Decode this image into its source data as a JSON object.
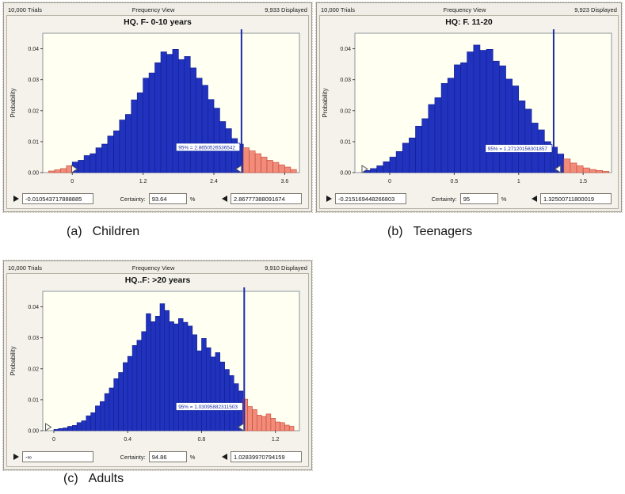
{
  "colors": {
    "bar_blue": "#2133be",
    "bar_blue_stroke": "#101e8c",
    "bar_red": "#f28c7a",
    "bar_red_stroke": "#c44433",
    "line": "#1b2da8",
    "plot_bg": "#fffff2",
    "plot_border": "#8e949c",
    "annotation_text": "#1b2da8"
  },
  "captions": [
    {
      "index": "(a)",
      "text": "Children"
    },
    {
      "index": "(b)",
      "text": "Teenagers"
    },
    {
      "index": "(c)",
      "text": "Adults"
    }
  ],
  "charts": [
    {
      "header": {
        "trials": "10,000 Trials",
        "view": "Frequency View",
        "displayed": "9,933 Displayed"
      },
      "title": "HQ. F- 0-10 years",
      "ylabel": "Probability",
      "annotation": "95% = 2.8650526536542",
      "controls": {
        "min_value": "-0.010543717888885",
        "certainty_label": "Certainty:",
        "certainty_value": "93.64",
        "percent_label": "%",
        "max_value": "2.86777388091674"
      },
      "chart_data": {
        "type": "bar",
        "title": "HQ. F- 0-10 years",
        "xlabel": "",
        "ylabel": "Probability",
        "xlim": [
          -0.5,
          3.85
        ],
        "ylim": [
          0,
          0.045
        ],
        "xtick_values": [
          0,
          1.2,
          2.4,
          3.6
        ],
        "xtick_labels": [
          "0",
          "1.2",
          "2.4",
          "3.6"
        ],
        "ytick_values": [
          0,
          0.01,
          0.02,
          0.03,
          0.04
        ],
        "ytick_labels": [
          "0.00",
          "0.01",
          "0.02",
          "0.03",
          "0.04"
        ],
        "bin_start": -0.4,
        "bin_width": 0.1,
        "bins_p": [
          0.0005,
          0.0009,
          0.0013,
          0.0022,
          0.0034,
          0.004,
          0.0055,
          0.0061,
          0.008,
          0.0092,
          0.0118,
          0.0135,
          0.017,
          0.0188,
          0.0235,
          0.0258,
          0.0305,
          0.0322,
          0.0355,
          0.039,
          0.0382,
          0.0398,
          0.0365,
          0.0375,
          0.0338,
          0.0305,
          0.0282,
          0.0236,
          0.0208,
          0.0165,
          0.0142,
          0.011,
          0.0092,
          0.008,
          0.007,
          0.0061,
          0.005,
          0.004,
          0.0033,
          0.0025,
          0.0018,
          0.001
        ],
        "left_grabber_x": -0.0105,
        "right_grabber_x": 2.8678,
        "line_x": 2.8678,
        "annotation_y": 0.0082,
        "grid": false,
        "legend": "none"
      }
    },
    {
      "header": {
        "trials": "10,000 Trials",
        "view": "Frequency View",
        "displayed": "9,923 Displayed"
      },
      "title": "HQ: F. 11-20",
      "ylabel": "Probability",
      "annotation": "95% = 1.27120156301857",
      "controls": {
        "min_value": "-0.215169448266803",
        "certainty_label": "Certainty:",
        "certainty_value": "95",
        "percent_label": "%",
        "max_value": "1.32500711800019"
      },
      "chart_data": {
        "type": "bar",
        "title": "HQ: F. 11-20",
        "xlabel": "",
        "ylabel": "Probability",
        "xlim": [
          -0.27,
          1.72
        ],
        "ylim": [
          0,
          0.045
        ],
        "xtick_values": [
          0,
          0.5,
          1,
          1.5
        ],
        "xtick_labels": [
          "0",
          "0.5",
          "1",
          "1.5"
        ],
        "ytick_values": [
          0,
          0.01,
          0.02,
          0.03,
          0.04
        ],
        "ytick_labels": [
          "0.00",
          "0.01",
          "0.02",
          "0.03",
          "0.04"
        ],
        "bin_start": -0.2,
        "bin_width": 0.05,
        "bins_p": [
          0.0007,
          0.0013,
          0.0022,
          0.0035,
          0.005,
          0.0068,
          0.0095,
          0.0112,
          0.015,
          0.0174,
          0.022,
          0.0242,
          0.0288,
          0.0305,
          0.0348,
          0.0355,
          0.039,
          0.0412,
          0.0395,
          0.0398,
          0.036,
          0.0345,
          0.0302,
          0.028,
          0.0232,
          0.0205,
          0.016,
          0.0138,
          0.01,
          0.0082,
          0.006,
          0.0044,
          0.0031,
          0.0022,
          0.0015,
          0.001,
          0.0007,
          0.0004
        ],
        "left_grabber_x": -0.215,
        "right_grabber_x": 1.325,
        "line_x": 1.2712,
        "annotation_y": 0.0078,
        "grid": false,
        "legend": "none"
      }
    },
    {
      "header": {
        "trials": "10,000 Trials",
        "view": "Frequency View",
        "displayed": "9,910 Displayed"
      },
      "title": "HQ..F: >20 years",
      "ylabel": "Probability",
      "annotation": "95% = 1.03095882311503",
      "controls": {
        "min_value": "-∞",
        "certainty_label": "Certainty:",
        "certainty_value": "94.86",
        "percent_label": "%",
        "max_value": "1.02839970794159"
      },
      "chart_data": {
        "type": "bar",
        "title": "HQ..F: >20 years",
        "xlabel": "",
        "ylabel": "Probability",
        "xlim": [
          -0.06,
          1.33
        ],
        "ylim": [
          0,
          0.045
        ],
        "xtick_values": [
          0,
          0.4,
          0.8,
          1.2
        ],
        "xtick_labels": [
          "0",
          "0.4",
          "0.8",
          "1.2"
        ],
        "ytick_values": [
          0,
          0.01,
          0.02,
          0.03,
          0.04
        ],
        "ytick_labels": [
          "0.00",
          "0.01",
          "0.02",
          "0.03",
          "0.04"
        ],
        "bin_start": 0,
        "bin_width": 0.025,
        "bins_p": [
          0.0004,
          0.0007,
          0.0009,
          0.0014,
          0.0017,
          0.0026,
          0.0032,
          0.0048,
          0.0058,
          0.008,
          0.0094,
          0.012,
          0.0138,
          0.0168,
          0.0188,
          0.022,
          0.024,
          0.0275,
          0.0292,
          0.032,
          0.0378,
          0.0352,
          0.037,
          0.041,
          0.0388,
          0.0352,
          0.0345,
          0.0362,
          0.035,
          0.0338,
          0.031,
          0.0258,
          0.0298,
          0.0268,
          0.0238,
          0.0252,
          0.0222,
          0.0198,
          0.0178,
          0.0152,
          0.0128,
          0.0102,
          0.0078,
          0.0068,
          0.005,
          0.0046,
          0.0054,
          0.004,
          0.0028,
          0.0026,
          0.0018,
          0.0014
        ],
        "left_grabber_x": -0.045,
        "right_grabber_x": 1.0284,
        "line_x": 1.031,
        "annotation_y": 0.0078,
        "grid": false,
        "legend": "none"
      }
    }
  ]
}
